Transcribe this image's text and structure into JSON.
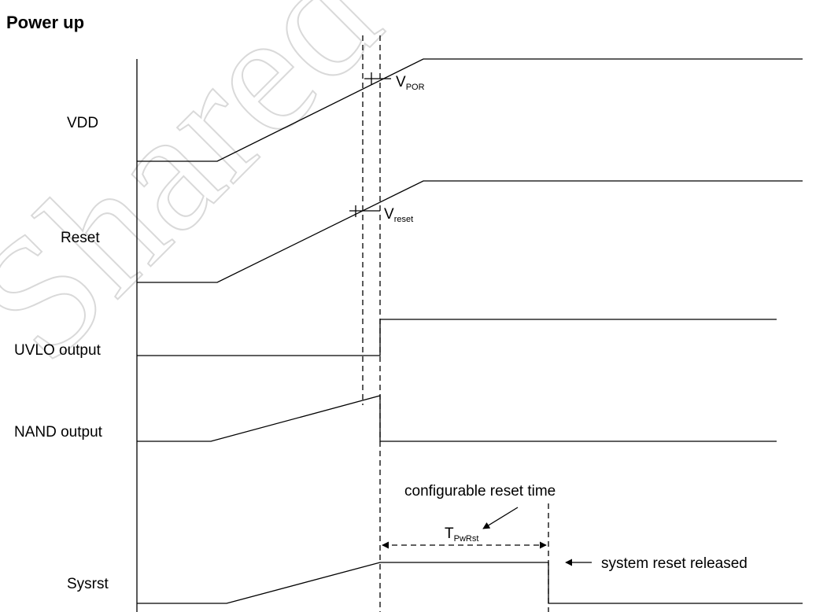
{
  "title": "Power up",
  "watermark": "Shared",
  "signals": {
    "vdd": "VDD",
    "reset": "Reset",
    "uvlo": "UVLO output",
    "nand": "NAND output",
    "sysrst": "Sysrst"
  },
  "thresholds": {
    "vpor": {
      "main": "V",
      "sub": "POR"
    },
    "vreset": {
      "main": "V",
      "sub": "reset"
    }
  },
  "annotations": {
    "configurable": "configurable reset time",
    "tpwrst": {
      "main": "T",
      "sub": "PwRst"
    },
    "released": "system reset released"
  }
}
